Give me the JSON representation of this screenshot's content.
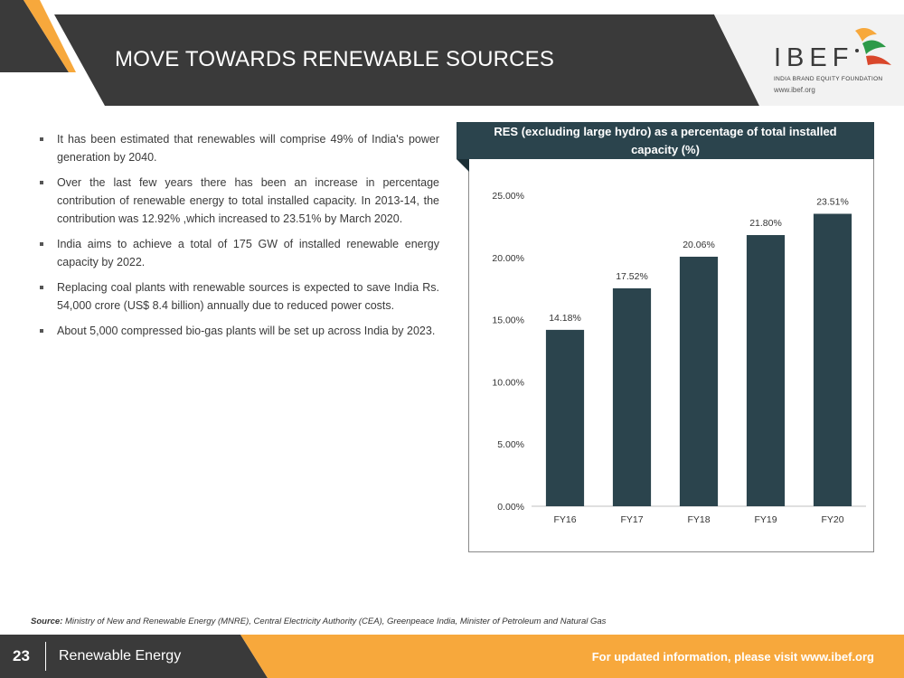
{
  "header": {
    "title": "MOVE TOWARDS RENEWABLE SOURCES",
    "logo": {
      "name": "IBEF",
      "subtitle": "INDIA BRAND EQUITY FOUNDATION",
      "url": "www.ibef.org"
    }
  },
  "bullets": [
    "It has been estimated that renewables will comprise 49% of India's power generation by 2040.",
    "Over the last few years there has been an increase in percentage contribution of renewable energy to total installed capacity. In 2013-14, the contribution was 12.92% ,which increased to 23.51% by March 2020.",
    "India aims to achieve a total of 175 GW of installed renewable energy capacity by 2022.",
    "Replacing coal plants with renewable sources is expected to save India Rs. 54,000 crore (US$ 8.4 billion) annually due to reduced power costs.",
    "About 5,000 compressed bio-gas plants will be set up across India by 2023."
  ],
  "chart_data": {
    "type": "bar",
    "title": "RES (excluding large hydro) as a percentage of total installed capacity (%)",
    "categories": [
      "FY16",
      "FY17",
      "FY18",
      "FY19",
      "FY20"
    ],
    "values": [
      14.18,
      17.52,
      20.06,
      21.8,
      23.51
    ],
    "data_labels": [
      "14.18%",
      "17.52%",
      "20.06%",
      "21.80%",
      "23.51%"
    ],
    "y_ticks": [
      "0.00%",
      "5.00%",
      "10.00%",
      "15.00%",
      "20.00%",
      "25.00%"
    ],
    "ylim": [
      0,
      25
    ],
    "xlabel": "",
    "ylabel": "",
    "grid": false,
    "legend": "none",
    "bar_color": "#2b444d"
  },
  "source": {
    "label": "Source:",
    "text": "Ministry of New and Renewable Energy (MNRE), Central Electricity Authority (CEA), Greenpeace India, Minister of Petroleum and Natural Gas"
  },
  "footer": {
    "page_number": "23",
    "section": "Renewable Energy",
    "update_text": "For updated information, please visit www.ibef.org"
  },
  "colors": {
    "dark": "#3a3a3a",
    "accent_orange": "#f7a83c",
    "chart_navy": "#2b444d"
  }
}
